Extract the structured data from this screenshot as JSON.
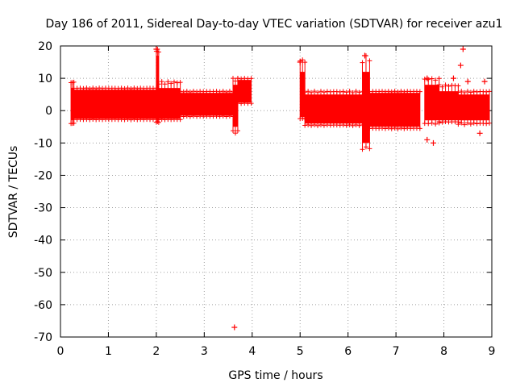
{
  "chart_data": {
    "type": "scatter",
    "title": "Day 186 of 2011, Sidereal Day-to-day VTEC variation (SDTVAR) for receiver azu1",
    "xlabel": "GPS time / hours",
    "ylabel": "SDTVAR / TECUs",
    "xlim": [
      0,
      9
    ],
    "ylim": [
      -70,
      20
    ],
    "xticks": [
      "0",
      "1",
      "2",
      "3",
      "4",
      "5",
      "6",
      "7",
      "8",
      "9"
    ],
    "yticks": [
      "20",
      "10",
      "0",
      "-10",
      "-20",
      "-30",
      "-40",
      "-50",
      "-60",
      "-70"
    ],
    "grid": true,
    "marker": "+",
    "color": "#ff0000",
    "series": [
      {
        "name": "SDTVAR",
        "segments": [
          {
            "x0": 0.22,
            "x1": 0.28,
            "low": -5,
            "high": 9,
            "band_low": -3,
            "band_high": 7
          },
          {
            "x0": 0.28,
            "x1": 2.0,
            "low": -3,
            "high": 7,
            "band_low": -2.5,
            "band_high": 6.5
          },
          {
            "x0": 2.0,
            "x1": 2.05,
            "low": -4,
            "high": 19,
            "band_low": -3,
            "band_high": 17
          },
          {
            "x0": 2.05,
            "x1": 2.5,
            "low": -3,
            "high": 9,
            "band_low": -2.5,
            "band_high": 7
          },
          {
            "x0": 2.5,
            "x1": 3.6,
            "low": -2,
            "high": 6,
            "band_low": -1.5,
            "band_high": 5.5
          },
          {
            "x0": 3.6,
            "x1": 3.7,
            "low": -8,
            "high": 10,
            "band_low": -5,
            "band_high": 8
          },
          {
            "x0": 3.7,
            "x1": 3.98,
            "low": 2,
            "high": 10,
            "band_low": 2.5,
            "band_high": 9.5
          },
          {
            "x0": 5.0,
            "x1": 5.1,
            "low": -3,
            "high": 16,
            "band_low": -2,
            "band_high": 12
          },
          {
            "x0": 5.1,
            "x1": 6.3,
            "low": -5,
            "high": 6,
            "band_low": -4,
            "band_high": 5
          },
          {
            "x0": 6.3,
            "x1": 6.45,
            "low": -13,
            "high": 17,
            "band_low": -10,
            "band_high": 12
          },
          {
            "x0": 6.45,
            "x1": 7.5,
            "low": -6,
            "high": 6,
            "band_low": -5,
            "band_high": 5.5
          },
          {
            "x0": 7.6,
            "x1": 7.9,
            "low": -5,
            "high": 10,
            "band_low": -3,
            "band_high": 8
          },
          {
            "x0": 7.9,
            "x1": 8.3,
            "low": -4,
            "high": 8,
            "band_low": -3,
            "band_high": 6
          },
          {
            "x0": 8.3,
            "x1": 8.95,
            "low": -5,
            "high": 6,
            "band_low": -3,
            "band_high": 5
          }
        ],
        "outliers": [
          {
            "x": 3.63,
            "y": -67
          },
          {
            "x": 8.4,
            "y": 19
          },
          {
            "x": 8.35,
            "y": 14
          },
          {
            "x": 7.78,
            "y": -10
          },
          {
            "x": 7.65,
            "y": -9
          },
          {
            "x": 8.2,
            "y": 10
          },
          {
            "x": 8.85,
            "y": 9
          },
          {
            "x": 8.75,
            "y": -7
          },
          {
            "x": 8.5,
            "y": 9
          },
          {
            "x": 5.0,
            "y": 15
          },
          {
            "x": 6.35,
            "y": 17
          },
          {
            "x": 7.65,
            "y": 10
          },
          {
            "x": 2.0,
            "y": 19
          }
        ]
      }
    ]
  }
}
